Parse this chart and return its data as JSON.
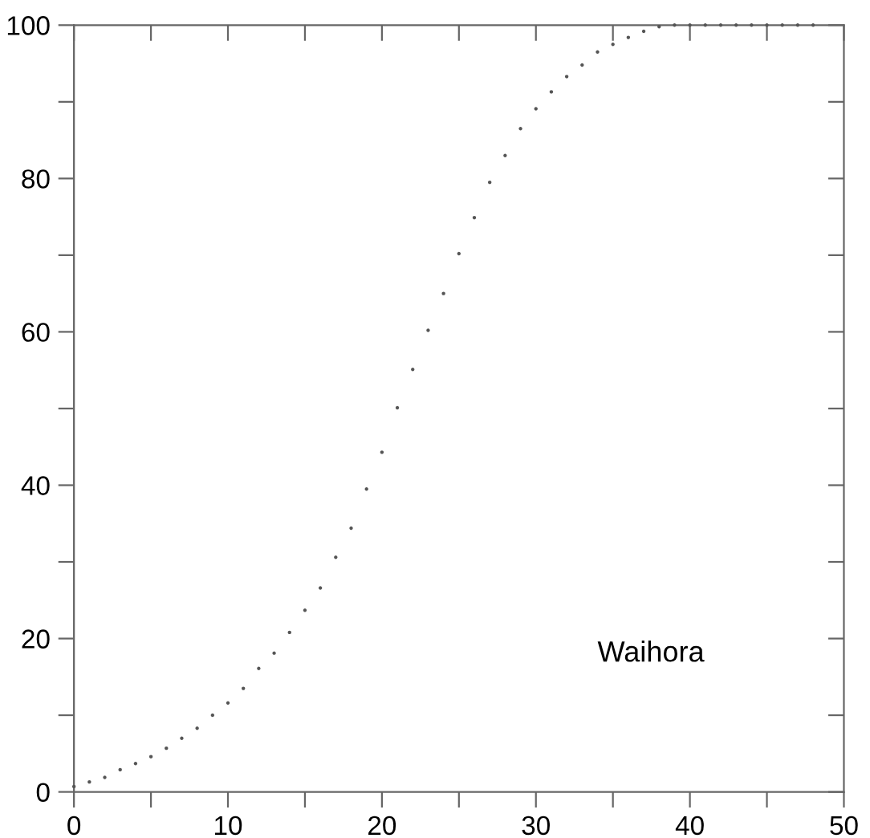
{
  "chart_data": {
    "type": "scatter",
    "x": [
      0,
      1,
      2,
      3,
      4,
      5,
      6,
      7,
      8,
      9,
      10,
      11,
      12,
      13,
      14,
      15,
      16,
      17,
      18,
      19,
      20,
      21,
      22,
      23,
      24,
      25,
      26,
      27,
      28,
      29,
      30,
      31,
      32,
      33,
      34,
      35,
      36,
      37,
      38,
      39,
      40,
      41,
      42,
      43,
      44,
      45,
      46,
      47,
      48
    ],
    "series": [
      {
        "color": "#555555",
        "values": [
          0.7,
          1.3,
          1.9,
          2.9,
          3.7,
          4.6,
          5.7,
          7,
          8.3,
          10,
          11.6,
          13.5,
          16.1,
          18.1,
          20.8,
          23.7,
          26.6,
          30.6,
          34.4,
          39.5,
          44.3,
          50.1,
          55.1,
          60.2,
          65,
          70.2,
          74.9,
          79.5,
          83,
          86.5,
          89.1,
          91.3,
          93.3,
          94.8,
          96.5,
          97.5,
          98.4,
          99.2,
          99.8,
          100,
          100,
          100,
          100,
          100,
          100,
          100,
          100,
          100,
          100
        ]
      }
    ],
    "xlim": [
      0,
      50
    ],
    "ylim": [
      0,
      100
    ],
    "xticks": [
      0,
      {
        "value": 5,
        "label": null
      },
      10,
      {
        "value": 15,
        "label": null
      },
      20,
      {
        "value": 25,
        "label": null
      },
      30,
      {
        "value": 35,
        "label": null
      },
      40,
      {
        "value": 45,
        "label": null
      },
      50
    ],
    "yticks": [
      0,
      {
        "value": 10,
        "label": null
      },
      20,
      {
        "value": 30,
        "label": null
      },
      40,
      {
        "value": 50,
        "label": null
      },
      60,
      {
        "value": 70,
        "label": null
      },
      80,
      {
        "value": 90,
        "label": null
      },
      100
    ],
    "annotations": [
      "Waihora"
    ],
    "marker": "circle",
    "grid": false,
    "legend": false
  }
}
